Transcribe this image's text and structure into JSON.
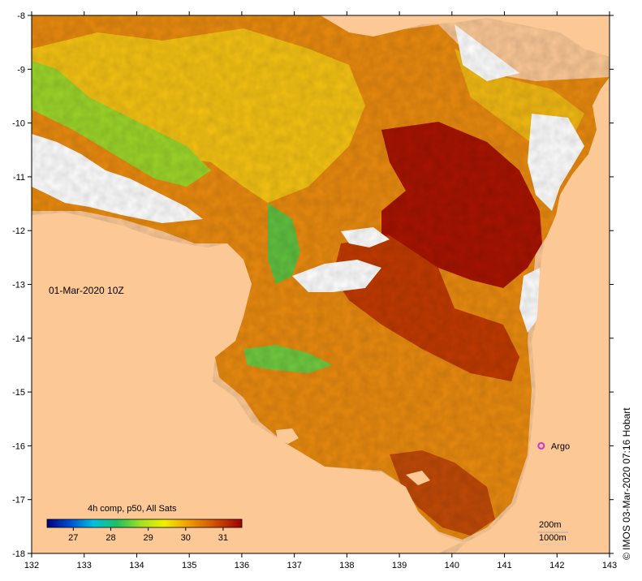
{
  "map": {
    "timestamp": "01-Mar-2020 10Z",
    "lon_labels": [
      "132",
      "133",
      "134",
      "135",
      "136",
      "137",
      "138",
      "139",
      "140",
      "141",
      "142",
      "143"
    ],
    "lat_labels": [
      "-8",
      "-9",
      "-10",
      "-11",
      "-12",
      "-13",
      "-14",
      "-15",
      "-16",
      "-17",
      "-18"
    ],
    "lon_range": [
      132,
      143
    ],
    "lat_range": [
      -18,
      -8
    ],
    "argo_label": "Argo",
    "argo_position": {
      "lon": 141.7,
      "lat": -16.0
    },
    "argo_color": "#cc33cc",
    "land_color": "#fbc896",
    "scale_bar": {
      "depth_200": "200m",
      "depth_1000": "1000m"
    }
  },
  "colorbar": {
    "title": "4h comp, p50, All Sats",
    "tick_labels": [
      "27",
      "28",
      "29",
      "30",
      "31"
    ],
    "stops": [
      "#000080",
      "#0050d0",
      "#00c0e0",
      "#20c060",
      "#a0e020",
      "#f0f000",
      "#f0a000",
      "#d05000",
      "#a00000"
    ]
  },
  "credit": "© IMOS 03-Mar-2020 07:16 Hobart"
}
